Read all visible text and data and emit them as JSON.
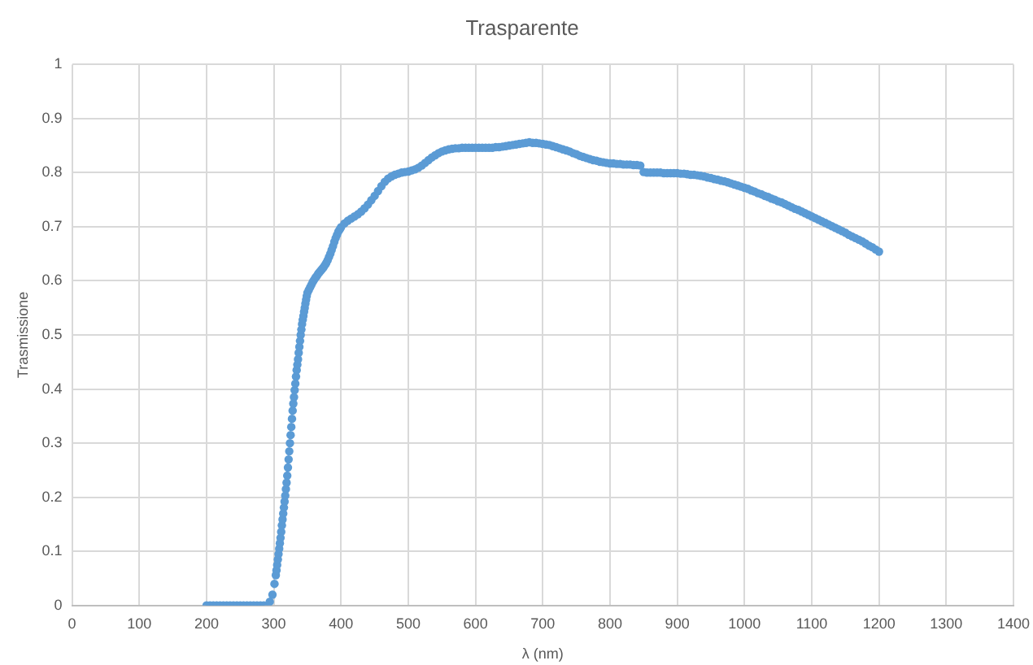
{
  "chart_data": {
    "type": "scatter",
    "title": "Trasparente",
    "xlabel": "λ (nm)",
    "ylabel": "Trasmissione",
    "color": "#5b9bd5",
    "marker": "circle",
    "grid": true,
    "xlim": [
      0,
      1400
    ],
    "xticks": [
      0,
      100,
      200,
      300,
      400,
      500,
      600,
      700,
      800,
      900,
      1000,
      1100,
      1200,
      1300,
      1400
    ],
    "ylim": [
      0,
      1
    ],
    "yticks": [
      0,
      0.1,
      0.2,
      0.3,
      0.4,
      0.5,
      0.6,
      0.7,
      0.8,
      0.9,
      1
    ],
    "x": [
      200,
      205,
      210,
      215,
      220,
      225,
      230,
      235,
      240,
      245,
      250,
      255,
      260,
      265,
      270,
      275,
      280,
      285,
      294,
      298,
      301,
      303,
      304,
      305,
      306,
      307,
      308,
      309,
      310,
      311,
      312,
      313,
      314,
      315,
      316,
      317,
      318,
      319,
      320,
      321,
      322,
      323,
      324,
      325,
      326,
      327,
      328,
      329,
      330,
      331,
      332,
      333,
      334,
      335,
      336,
      337,
      338,
      339,
      340,
      341,
      342,
      343,
      344,
      345,
      346,
      347,
      348,
      349,
      350,
      352,
      354,
      356,
      358,
      360,
      362,
      364,
      366,
      368,
      370,
      372,
      374,
      376,
      378,
      380,
      382,
      384,
      386,
      388,
      390,
      392,
      394,
      396,
      398,
      400,
      405,
      410,
      415,
      420,
      425,
      430,
      435,
      440,
      445,
      450,
      455,
      460,
      465,
      470,
      475,
      480,
      485,
      490,
      495,
      500,
      505,
      510,
      515,
      520,
      525,
      530,
      535,
      540,
      545,
      550,
      555,
      560,
      565,
      570,
      575,
      580,
      585,
      590,
      595,
      600,
      605,
      610,
      615,
      620,
      625,
      630,
      635,
      640,
      645,
      650,
      655,
      660,
      665,
      670,
      675,
      680,
      685,
      690,
      695,
      700,
      705,
      710,
      715,
      720,
      725,
      730,
      735,
      740,
      745,
      750,
      755,
      760,
      765,
      770,
      775,
      780,
      785,
      790,
      795,
      800,
      805,
      810,
      815,
      820,
      825,
      830,
      835,
      840,
      845,
      850,
      855,
      860,
      865,
      870,
      875,
      880,
      885,
      890,
      895,
      900,
      905,
      910,
      915,
      920,
      925,
      930,
      935,
      940,
      945,
      950,
      955,
      960,
      965,
      970,
      975,
      980,
      985,
      990,
      995,
      1000,
      1005,
      1010,
      1015,
      1020,
      1025,
      1030,
      1035,
      1040,
      1045,
      1050,
      1055,
      1060,
      1065,
      1070,
      1075,
      1080,
      1085,
      1090,
      1095,
      1100,
      1105,
      1110,
      1115,
      1120,
      1125,
      1130,
      1135,
      1140,
      1145,
      1150,
      1155,
      1160,
      1165,
      1170,
      1175,
      1180,
      1185,
      1190,
      1195,
      1200
    ],
    "values": [
      0,
      0,
      0,
      0,
      0,
      0,
      0,
      0,
      0,
      0,
      0,
      0,
      0,
      0,
      0,
      0,
      0,
      0,
      0.007,
      0.02,
      0.04,
      0.056,
      0.065,
      0.075,
      0.085,
      0.095,
      0.105,
      0.115,
      0.125,
      0.136,
      0.148,
      0.159,
      0.17,
      0.181,
      0.192,
      0.203,
      0.215,
      0.227,
      0.24,
      0.255,
      0.27,
      0.285,
      0.3,
      0.315,
      0.33,
      0.345,
      0.36,
      0.373,
      0.385,
      0.398,
      0.41,
      0.423,
      0.435,
      0.445,
      0.455,
      0.467,
      0.478,
      0.489,
      0.5,
      0.51,
      0.52,
      0.528,
      0.535,
      0.543,
      0.55,
      0.558,
      0.565,
      0.572,
      0.578,
      0.583,
      0.588,
      0.593,
      0.598,
      0.602,
      0.606,
      0.609,
      0.613,
      0.616,
      0.619,
      0.622,
      0.625,
      0.629,
      0.633,
      0.638,
      0.644,
      0.65,
      0.657,
      0.664,
      0.672,
      0.679,
      0.685,
      0.691,
      0.695,
      0.699,
      0.706,
      0.711,
      0.715,
      0.719,
      0.723,
      0.728,
      0.734,
      0.741,
      0.749,
      0.757,
      0.766,
      0.775,
      0.783,
      0.789,
      0.793,
      0.796,
      0.798,
      0.8,
      0.801,
      0.802,
      0.804,
      0.806,
      0.809,
      0.813,
      0.818,
      0.823,
      0.828,
      0.832,
      0.836,
      0.839,
      0.841,
      0.843,
      0.844,
      0.845,
      0.845,
      0.846,
      0.846,
      0.846,
      0.846,
      0.846,
      0.846,
      0.846,
      0.846,
      0.846,
      0.846,
      0.847,
      0.847,
      0.848,
      0.849,
      0.85,
      0.851,
      0.852,
      0.853,
      0.854,
      0.855,
      0.856,
      0.855,
      0.855,
      0.854,
      0.853,
      0.852,
      0.851,
      0.849,
      0.847,
      0.845,
      0.843,
      0.841,
      0.839,
      0.836,
      0.834,
      0.831,
      0.829,
      0.827,
      0.825,
      0.823,
      0.822,
      0.82,
      0.819,
      0.818,
      0.817,
      0.817,
      0.816,
      0.816,
      0.815,
      0.815,
      0.815,
      0.814,
      0.814,
      0.813,
      0.801,
      0.8,
      0.8,
      0.8,
      0.8,
      0.8,
      0.799,
      0.799,
      0.799,
      0.799,
      0.799,
      0.798,
      0.798,
      0.797,
      0.796,
      0.796,
      0.795,
      0.794,
      0.793,
      0.791,
      0.79,
      0.788,
      0.787,
      0.785,
      0.784,
      0.782,
      0.78,
      0.778,
      0.776,
      0.774,
      0.772,
      0.77,
      0.767,
      0.765,
      0.762,
      0.76,
      0.757,
      0.755,
      0.752,
      0.75,
      0.747,
      0.745,
      0.742,
      0.739,
      0.736,
      0.733,
      0.731,
      0.728,
      0.725,
      0.722,
      0.719,
      0.716,
      0.713,
      0.71,
      0.707,
      0.704,
      0.701,
      0.698,
      0.695,
      0.692,
      0.689,
      0.685,
      0.682,
      0.679,
      0.676,
      0.673,
      0.669,
      0.665,
      0.662,
      0.658,
      0.654
    ]
  }
}
